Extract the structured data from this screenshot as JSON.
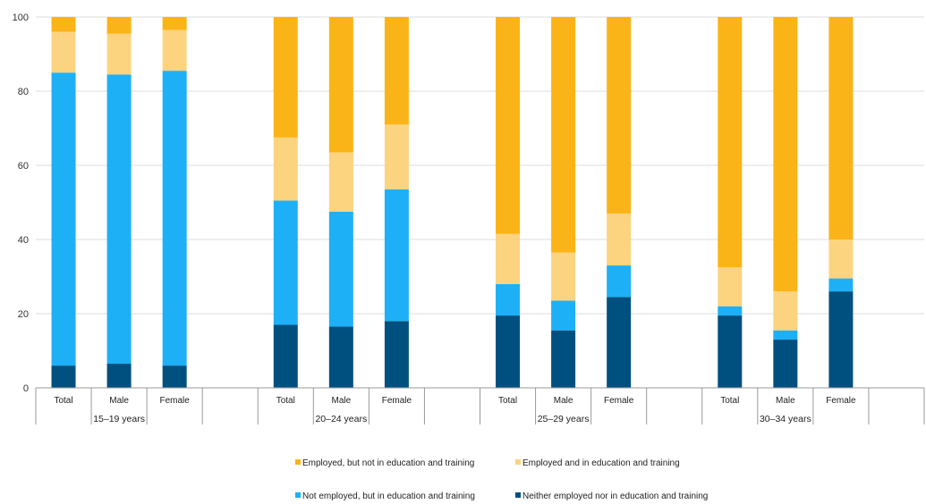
{
  "chart_data": {
    "type": "bar",
    "stacked": true,
    "title": "",
    "xlabel": "",
    "ylabel": "",
    "ylim": [
      0,
      100
    ],
    "yticks": [
      0,
      20,
      40,
      60,
      80,
      100
    ],
    "grid": true,
    "legend_position": "bottom",
    "groups": [
      {
        "label": "15–19 years",
        "categories": [
          "Total",
          "Male",
          "Female"
        ]
      },
      {
        "label": "20–24 years",
        "categories": [
          "Total",
          "Male",
          "Female"
        ]
      },
      {
        "label": "25–29 years",
        "categories": [
          "Total",
          "Male",
          "Female"
        ]
      },
      {
        "label": "30–34 years",
        "categories": [
          "Total",
          "Male",
          "Female"
        ]
      }
    ],
    "series": [
      {
        "name": "Neither employed nor in education and training",
        "color": "#00507f",
        "values": [
          6,
          6.5,
          6,
          17,
          16.5,
          18,
          19.5,
          15.5,
          24.5,
          19.5,
          13,
          26
        ]
      },
      {
        "name": "Not employed, but in education and training",
        "color": "#1eb0f6",
        "values": [
          79,
          78,
          79.5,
          33.5,
          31,
          35.5,
          8.5,
          8,
          8.5,
          2.5,
          2.5,
          3.5
        ]
      },
      {
        "name": "Employed and in education and training",
        "color": "#fcd37f",
        "values": [
          11,
          11,
          11,
          17,
          16,
          17.5,
          13.5,
          13,
          14,
          10.5,
          10.5,
          10.5
        ]
      },
      {
        "name": "Employed, but not in education and training",
        "color": "#fbb417",
        "values": [
          4,
          4.5,
          3.5,
          32.5,
          36.5,
          29,
          58.5,
          63.5,
          53,
          67.5,
          74,
          60
        ]
      }
    ],
    "legend_order": [
      3,
      2,
      1,
      0
    ]
  }
}
